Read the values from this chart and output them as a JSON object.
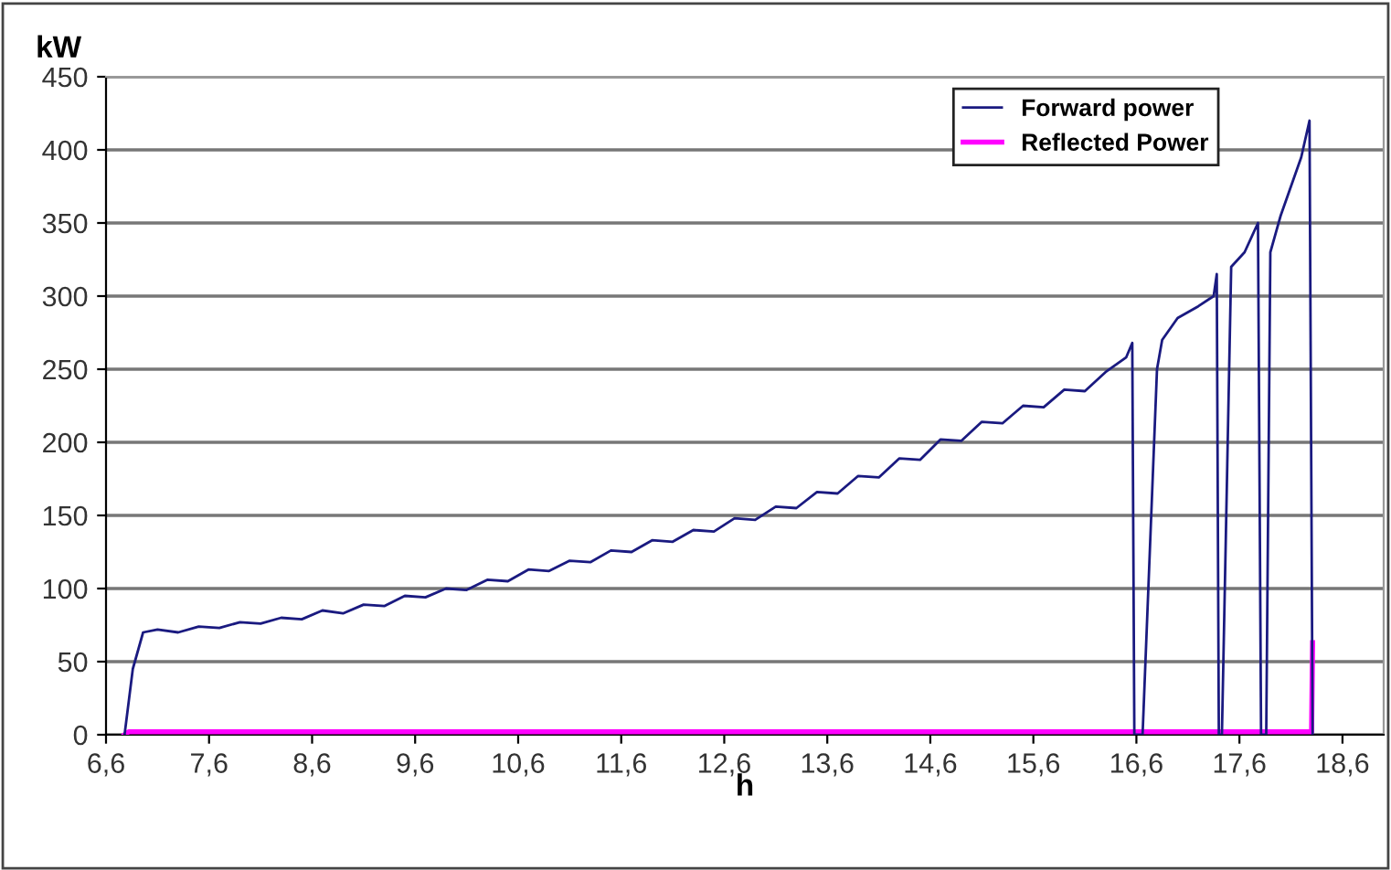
{
  "chart_data": {
    "type": "line",
    "xlabel": "h",
    "ylabel": "kW",
    "xlim": [
      6.6,
      19.0
    ],
    "ylim": [
      0,
      450
    ],
    "xticks": [
      {
        "value": 6.6,
        "label": "6,6"
      },
      {
        "value": 7.6,
        "label": "7,6"
      },
      {
        "value": 8.6,
        "label": "8,6"
      },
      {
        "value": 9.6,
        "label": "9,6"
      },
      {
        "value": 10.6,
        "label": "10,6"
      },
      {
        "value": 11.6,
        "label": "11,6"
      },
      {
        "value": 12.6,
        "label": "12,6"
      },
      {
        "value": 13.6,
        "label": "13,6"
      },
      {
        "value": 14.6,
        "label": "14,6"
      },
      {
        "value": 15.6,
        "label": "15,6"
      },
      {
        "value": 16.6,
        "label": "16,6"
      },
      {
        "value": 17.6,
        "label": "17,6"
      },
      {
        "value": 18.6,
        "label": "18,6"
      }
    ],
    "yticks": [
      0,
      50,
      100,
      150,
      200,
      250,
      300,
      350,
      400,
      450
    ],
    "grid": "y",
    "legend": "top right",
    "marker": "none",
    "line_style": "solid",
    "series": [
      {
        "name": "Forward power",
        "color": "#1a1a80",
        "x": [
          6.78,
          6.86,
          6.96,
          7.1,
          7.3,
          7.5,
          7.7,
          7.9,
          8.1,
          8.3,
          8.5,
          8.7,
          8.9,
          9.1,
          9.3,
          9.5,
          9.7,
          9.9,
          10.1,
          10.3,
          10.5,
          10.7,
          10.9,
          11.1,
          11.3,
          11.5,
          11.7,
          11.9,
          12.1,
          12.3,
          12.5,
          12.7,
          12.9,
          13.1,
          13.3,
          13.5,
          13.7,
          13.9,
          14.1,
          14.3,
          14.5,
          14.7,
          14.9,
          15.1,
          15.3,
          15.5,
          15.7,
          15.9,
          16.1,
          16.3,
          16.5,
          16.56,
          16.58,
          16.66,
          16.8,
          16.85,
          17.0,
          17.2,
          17.35,
          17.38,
          17.4,
          17.43,
          17.52,
          17.65,
          17.78,
          17.81,
          17.86,
          17.9,
          18.0,
          18.1,
          18.2,
          18.28,
          18.31
        ],
        "values": [
          0,
          45,
          70,
          72,
          70,
          74,
          73,
          77,
          76,
          80,
          79,
          85,
          83,
          89,
          88,
          95,
          94,
          100,
          99,
          106,
          105,
          113,
          112,
          119,
          118,
          126,
          125,
          133,
          132,
          140,
          139,
          148,
          147,
          156,
          155,
          166,
          165,
          177,
          176,
          189,
          188,
          202,
          201,
          214,
          213,
          225,
          224,
          236,
          235,
          248,
          258,
          268,
          0,
          0,
          250,
          270,
          285,
          293,
          300,
          315,
          0,
          0,
          320,
          330,
          350,
          0,
          0,
          330,
          355,
          375,
          395,
          420,
          0
        ]
      },
      {
        "name": "Reflected Power",
        "color": "#ff00ff",
        "x": [
          6.78,
          6.82,
          18.3,
          18.31
        ],
        "values": [
          0,
          2,
          2,
          63
        ]
      }
    ]
  }
}
